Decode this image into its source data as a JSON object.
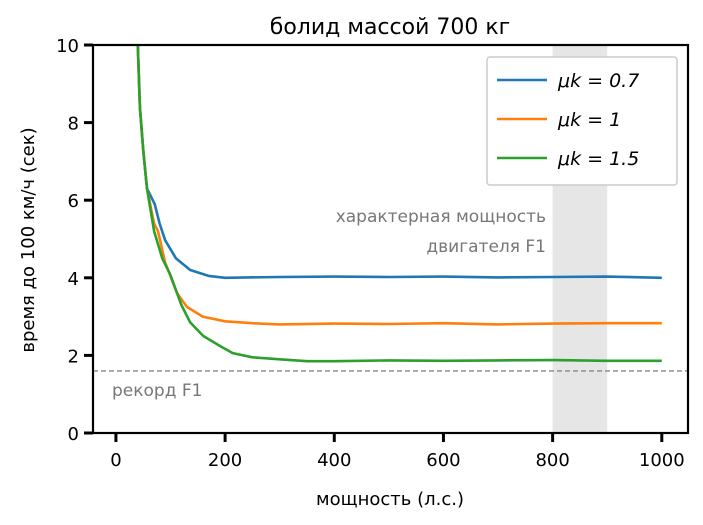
{
  "chart_data": {
    "type": "line",
    "title": "болид массой 700 кг",
    "xlabel": "мощность (л.с.)",
    "ylabel": "время до 100 км/ч (сек)",
    "xlim": [
      -42,
      1048
    ],
    "ylim": [
      0,
      10
    ],
    "xticks": [
      0,
      200,
      400,
      600,
      800,
      1000
    ],
    "yticks": [
      0,
      2,
      4,
      6,
      8,
      10
    ],
    "grid": false,
    "legend_placement": "top-right",
    "series": [
      {
        "name": "μk = 0.7",
        "color": "#1f77b4",
        "points": [
          [
            40,
            10
          ],
          [
            44,
            8.4
          ],
          [
            50,
            7.3
          ],
          [
            57,
            6.3
          ],
          [
            71,
            5.9
          ],
          [
            80,
            5.4
          ],
          [
            90,
            4.97
          ],
          [
            110,
            4.5
          ],
          [
            136,
            4.2
          ],
          [
            170,
            4.05
          ],
          [
            200,
            4.0
          ],
          [
            300,
            4.02
          ],
          [
            400,
            4.03
          ],
          [
            500,
            4.02
          ],
          [
            600,
            4.03
          ],
          [
            700,
            4.01
          ],
          [
            800,
            4.02
          ],
          [
            900,
            4.03
          ],
          [
            1000,
            4.0
          ]
        ]
      },
      {
        "name": "μk = 1",
        "color": "#ff7f0e",
        "points": [
          [
            40,
            10
          ],
          [
            44,
            8.4
          ],
          [
            50,
            7.3
          ],
          [
            57,
            6.3
          ],
          [
            70,
            5.4
          ],
          [
            77,
            5.2
          ],
          [
            90,
            4.4
          ],
          [
            112,
            3.6
          ],
          [
            130,
            3.25
          ],
          [
            159,
            3.0
          ],
          [
            200,
            2.88
          ],
          [
            250,
            2.83
          ],
          [
            300,
            2.8
          ],
          [
            400,
            2.82
          ],
          [
            500,
            2.81
          ],
          [
            600,
            2.83
          ],
          [
            700,
            2.8
          ],
          [
            800,
            2.82
          ],
          [
            900,
            2.83
          ],
          [
            1000,
            2.83
          ]
        ]
      },
      {
        "name": "μk = 1.5",
        "color": "#2ca02c",
        "points": [
          [
            40,
            10
          ],
          [
            44,
            8.4
          ],
          [
            50,
            7.3
          ],
          [
            57,
            6.3
          ],
          [
            70,
            5.2
          ],
          [
            85,
            4.5
          ],
          [
            99,
            4.1
          ],
          [
            120,
            3.3
          ],
          [
            136,
            2.85
          ],
          [
            160,
            2.5
          ],
          [
            190,
            2.25
          ],
          [
            214,
            2.06
          ],
          [
            250,
            1.95
          ],
          [
            300,
            1.9
          ],
          [
            350,
            1.85
          ],
          [
            400,
            1.85
          ],
          [
            500,
            1.87
          ],
          [
            600,
            1.86
          ],
          [
            700,
            1.87
          ],
          [
            800,
            1.88
          ],
          [
            900,
            1.86
          ],
          [
            1000,
            1.86
          ]
        ]
      }
    ],
    "reference_line": {
      "y": 1.6,
      "label": "рекорд F1",
      "color": "#888888",
      "style": "dashed"
    },
    "shaded_region": {
      "x": [
        800,
        900
      ],
      "label": "характерная мощность двигателя F1",
      "label_lines": [
        "характерная мощность",
        "двигателя F1"
      ],
      "color": "#e6e6e6"
    }
  }
}
